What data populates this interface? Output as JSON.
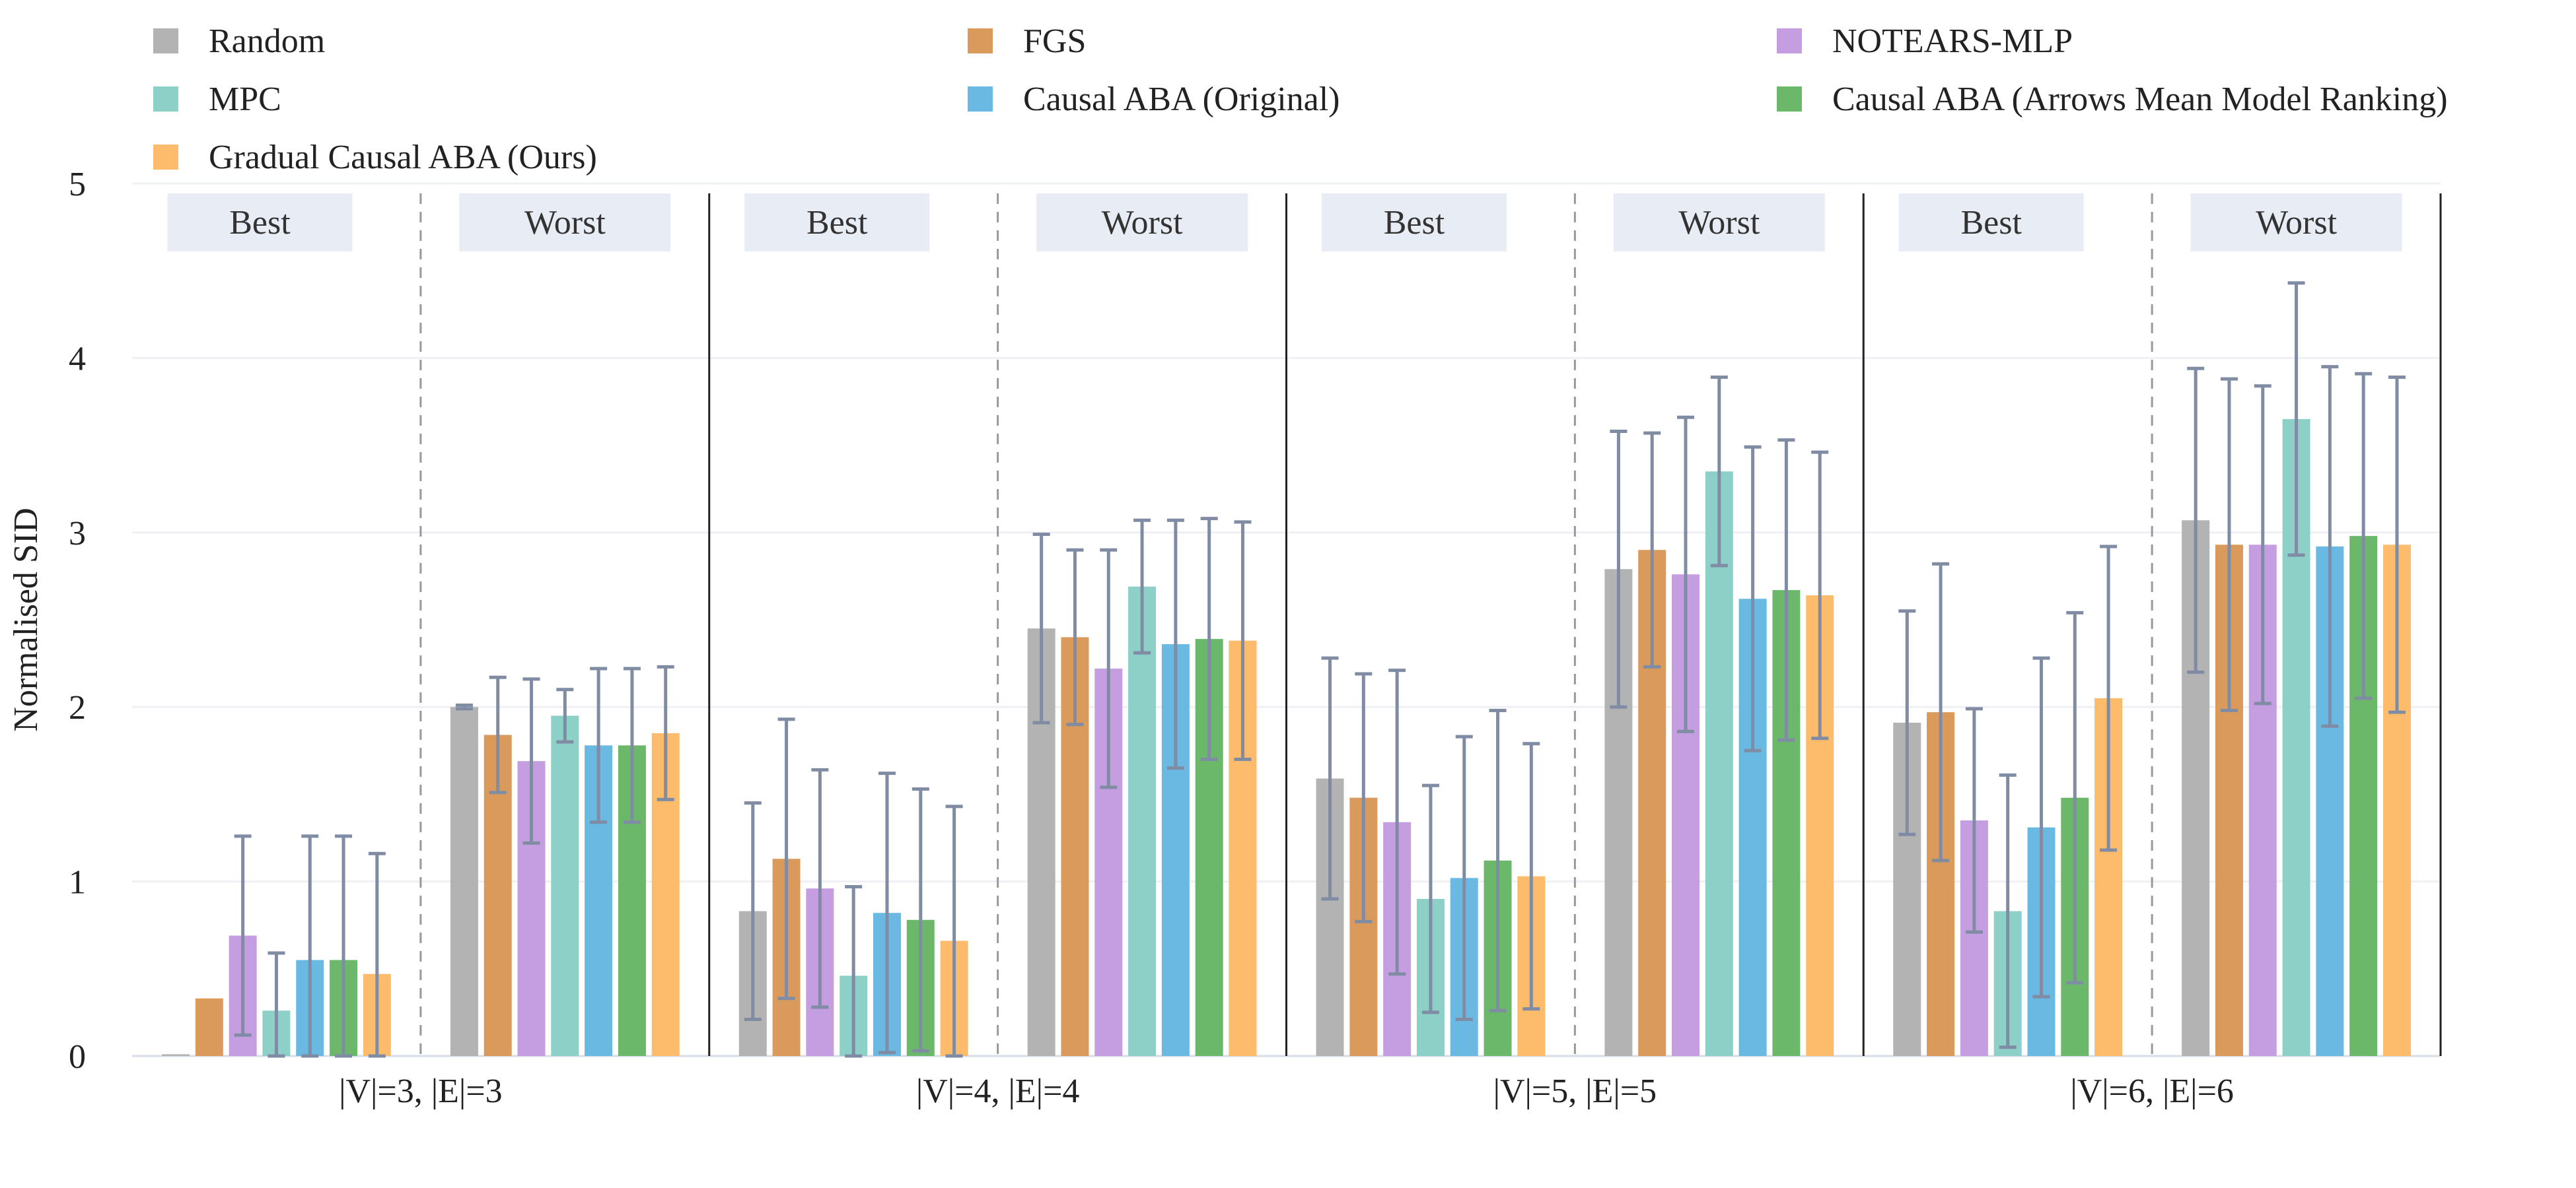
{
  "colors": {
    "Random": "#b3b3b3",
    "FGS": "#d99a5c",
    "NOTEARS-MLP": "#c49ee0",
    "MPC": "#8dd0c8",
    "Causal ABA (Original)": "#69b9e3",
    "Causal ABA (Arrows Mean Model Ranking)": "#6cb86a",
    "Gradual Causal ABA (Ours)": "#fdbb6c",
    "error_bar": "#7f8ca3",
    "panel_header_bg": "#e8ecf4",
    "grid": "#eef0f4"
  },
  "chart_data": {
    "type": "bar",
    "title": "",
    "xlabel": "",
    "ylabel": "Normalised SID",
    "ylim": [
      0,
      5
    ],
    "yticks": [
      "0",
      "1",
      "2",
      "3",
      "4",
      "5"
    ],
    "legend_position": "top",
    "grid": true,
    "groups": [
      "|V|=3, |E|=3",
      "|V|=4, |E|=4",
      "|V|=5, |E|=5",
      "|V|=6, |E|=6"
    ],
    "subpanels": [
      "Best",
      "Worst"
    ],
    "series": [
      {
        "name": "Random",
        "values": [
          0.01,
          2.0,
          0.83,
          2.45,
          1.59,
          2.79,
          1.91,
          3.07
        ],
        "error": [
          null,
          0.01,
          0.62,
          0.54,
          0.69,
          0.79,
          0.64,
          0.87
        ]
      },
      {
        "name": "FGS",
        "values": [
          0.33,
          1.84,
          1.13,
          2.4,
          1.48,
          2.9,
          1.97,
          2.93
        ],
        "error": [
          null,
          0.33,
          0.8,
          0.5,
          0.71,
          0.67,
          0.85,
          0.95
        ]
      },
      {
        "name": "NOTEARS-MLP",
        "values": [
          0.69,
          1.69,
          0.96,
          2.22,
          1.34,
          2.76,
          1.35,
          2.93
        ],
        "error": [
          0.57,
          0.47,
          0.68,
          0.68,
          0.87,
          0.9,
          0.64,
          0.91
        ]
      },
      {
        "name": "MPC",
        "values": [
          0.26,
          1.95,
          0.46,
          2.69,
          0.9,
          3.35,
          0.83,
          3.65
        ],
        "error": [
          0.33,
          0.15,
          0.51,
          0.38,
          0.65,
          0.54,
          0.78,
          0.78
        ]
      },
      {
        "name": "Causal ABA (Original)",
        "values": [
          0.55,
          1.78,
          0.82,
          2.36,
          1.02,
          2.62,
          1.31,
          2.92
        ],
        "error": [
          0.71,
          0.44,
          0.8,
          0.71,
          0.81,
          0.87,
          0.97,
          1.03
        ]
      },
      {
        "name": "Causal ABA (Arrows Mean Model Ranking)",
        "values": [
          0.55,
          1.78,
          0.78,
          2.39,
          1.12,
          2.67,
          1.48,
          2.98
        ],
        "error": [
          0.71,
          0.44,
          0.75,
          0.69,
          0.86,
          0.86,
          1.06,
          0.93
        ]
      },
      {
        "name": "Gradual Causal ABA (Ours)",
        "values": [
          0.47,
          1.85,
          0.66,
          2.38,
          1.03,
          2.64,
          2.05,
          2.93
        ],
        "error": [
          0.69,
          0.38,
          0.77,
          0.68,
          0.76,
          0.82,
          0.87,
          0.96
        ]
      }
    ]
  }
}
